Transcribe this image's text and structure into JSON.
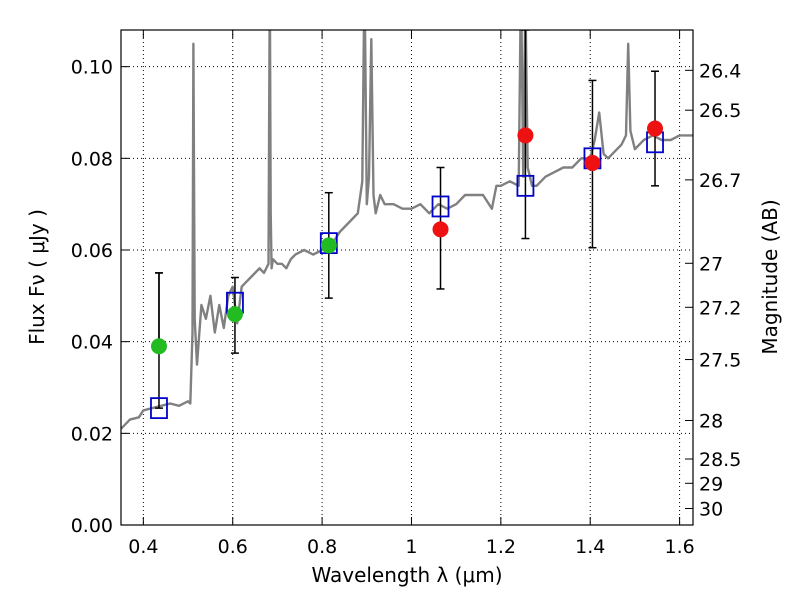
{
  "chart_data": {
    "type": "scatter",
    "xlabel": "Wavelength  λ (μm)",
    "ylabel": "Flux  Fν  ( μJy )",
    "ylabel_right": "Magnitude (AB)",
    "xlim": [
      0.35,
      1.63
    ],
    "ylim": [
      0.0,
      0.108
    ],
    "grid": true,
    "x_ticks": [
      0.4,
      0.6,
      0.8,
      1.0,
      1.2,
      1.4,
      1.6
    ],
    "x_tick_labels": [
      "0.4",
      "0.6",
      "0.8",
      "1",
      "1.2",
      "1.4",
      "1.6"
    ],
    "y_ticks": [
      0.0,
      0.02,
      0.04,
      0.06,
      0.08,
      0.1
    ],
    "y_tick_labels": [
      "0.00",
      "0.02",
      "0.04",
      "0.06",
      "0.08",
      "0.10"
    ],
    "right_ticks": [
      {
        "label": "26.4",
        "flux": 0.0992
      },
      {
        "label": "26.5",
        "flux": 0.0905
      },
      {
        "label": "26.7",
        "flux": 0.0753
      },
      {
        "label": "27",
        "flux": 0.0571
      },
      {
        "label": "27.2",
        "flux": 0.0475
      },
      {
        "label": "27.5",
        "flux": 0.0361
      },
      {
        "label": "28",
        "flux": 0.0228
      },
      {
        "label": "28.5",
        "flux": 0.0144
      },
      {
        "label": "29",
        "flux": 0.0091
      },
      {
        "label": "30",
        "flux": 0.0036
      }
    ],
    "series": [
      {
        "kind": "line",
        "color": "#808080",
        "x": [
          0.35,
          0.37,
          0.39,
          0.4,
          0.42,
          0.44,
          0.46,
          0.48,
          0.5,
          0.505,
          0.51,
          0.512,
          0.515,
          0.52,
          0.53,
          0.54,
          0.55,
          0.56,
          0.57,
          0.58,
          0.59,
          0.6,
          0.61,
          0.62,
          0.63,
          0.64,
          0.65,
          0.66,
          0.67,
          0.68,
          0.683,
          0.685,
          0.687,
          0.69,
          0.7,
          0.71,
          0.72,
          0.73,
          0.74,
          0.76,
          0.78,
          0.8,
          0.82,
          0.84,
          0.86,
          0.88,
          0.89,
          0.895,
          0.9,
          0.905,
          0.91,
          0.915,
          0.92,
          0.93,
          0.94,
          0.96,
          0.98,
          1.0,
          1.02,
          1.04,
          1.06,
          1.08,
          1.1,
          1.12,
          1.14,
          1.16,
          1.18,
          1.19,
          1.2,
          1.22,
          1.24,
          1.245,
          1.25,
          1.255,
          1.26,
          1.27,
          1.28,
          1.3,
          1.32,
          1.34,
          1.36,
          1.38,
          1.4,
          1.41,
          1.42,
          1.43,
          1.44,
          1.46,
          1.47,
          1.48,
          1.485,
          1.49,
          1.5,
          1.52,
          1.54,
          1.56,
          1.58,
          1.6,
          1.63
        ],
        "y": [
          0.021,
          0.023,
          0.0235,
          0.025,
          0.0255,
          0.026,
          0.0265,
          0.026,
          0.027,
          0.0265,
          0.042,
          0.105,
          0.045,
          0.035,
          0.048,
          0.045,
          0.05,
          0.042,
          0.048,
          0.043,
          0.05,
          0.052,
          0.044,
          0.052,
          0.053,
          0.054,
          0.055,
          0.056,
          0.055,
          0.057,
          0.12,
          0.068,
          0.056,
          0.058,
          0.057,
          0.057,
          0.056,
          0.058,
          0.059,
          0.06,
          0.059,
          0.06,
          0.061,
          0.064,
          0.066,
          0.068,
          0.075,
          0.12,
          0.07,
          0.076,
          0.106,
          0.072,
          0.068,
          0.072,
          0.07,
          0.07,
          0.069,
          0.069,
          0.07,
          0.068,
          0.07,
          0.069,
          0.07,
          0.072,
          0.072,
          0.072,
          0.069,
          0.074,
          0.074,
          0.075,
          0.074,
          0.12,
          0.076,
          0.115,
          0.078,
          0.074,
          0.074,
          0.076,
          0.077,
          0.078,
          0.078,
          0.08,
          0.08,
          0.084,
          0.09,
          0.081,
          0.08,
          0.082,
          0.083,
          0.085,
          0.105,
          0.086,
          0.082,
          0.084,
          0.085,
          0.084,
          0.084,
          0.085,
          0.085
        ]
      },
      {
        "kind": "open-square",
        "color": "#0000cc",
        "x": [
          0.435,
          0.605,
          0.815,
          1.065,
          1.255,
          1.405,
          1.545
        ],
        "y": [
          0.0255,
          0.0485,
          0.0615,
          0.0695,
          0.074,
          0.08,
          0.0835
        ]
      },
      {
        "kind": "filled-circle",
        "color": "#22bb22",
        "x": [
          0.435,
          0.605,
          0.815
        ],
        "y": [
          0.039,
          0.046,
          0.061
        ],
        "yerr_low": [
          0.0,
          0.0085,
          0.0115
        ],
        "yerr_high": [
          0.016,
          0.008,
          0.0115
        ]
      },
      {
        "kind": "filled-circle",
        "color": "#ee1111",
        "x": [
          1.065,
          1.255,
          1.405,
          1.545
        ],
        "y": [
          0.0645,
          0.085,
          0.079,
          0.0865
        ],
        "yerr_low": [
          0.013,
          0.0225,
          0.0185,
          0.0125
        ],
        "yerr_high": [
          0.0135,
          0.023,
          0.018,
          0.0125
        ]
      }
    ],
    "extra_errorbars": [
      {
        "x": 0.435,
        "ylow": 0.0255,
        "yhigh": 0.055
      }
    ]
  }
}
